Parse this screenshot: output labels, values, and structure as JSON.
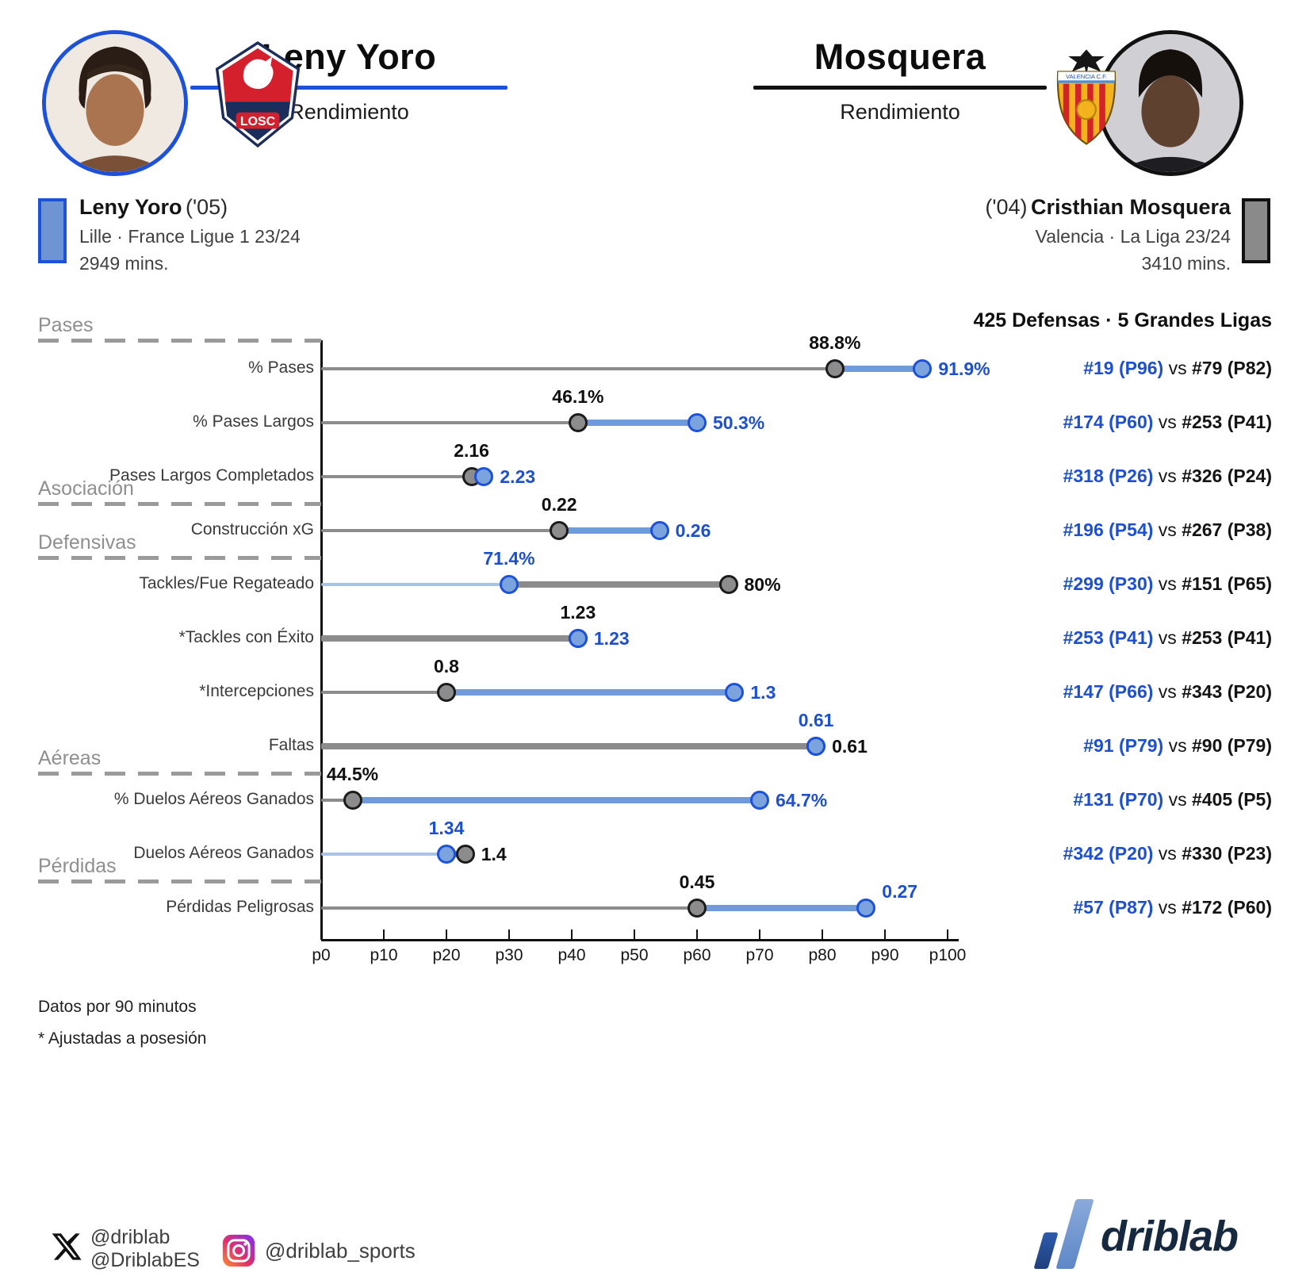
{
  "header": {
    "left": {
      "title": "Leny Yoro",
      "subtitle": "Rendimiento",
      "accent": "#1d52d8"
    },
    "right": {
      "title": "Mosquera",
      "subtitle": "Rendimiento",
      "accent": "#111111"
    }
  },
  "legend": {
    "left": {
      "name": "Leny Yoro",
      "birth": "('05)",
      "club": "Lille · France Ligue 1 23/24",
      "minutes": "2949 mins."
    },
    "right": {
      "name": "Cristhian Mosquera",
      "birth": "('04)",
      "club": "Valencia · La Liga 23/24",
      "minutes": "3410 mins."
    }
  },
  "ranking": {
    "header": "425 Defensas · 5 Grandes Ligas",
    "separator": " vs "
  },
  "chart_data": {
    "type": "dumbbell",
    "x_axis": {
      "min": 0,
      "max": 100,
      "ticks": [
        "p0",
        "p10",
        "p20",
        "p30",
        "p40",
        "p50",
        "p60",
        "p70",
        "p80",
        "p90",
        "p100"
      ]
    },
    "players": [
      {
        "id": "yoro",
        "name": "Leny Yoro"
      },
      {
        "id": "mosquera",
        "name": "Cristhian Mosquera"
      }
    ],
    "colors": {
      "yoro_dot_fill": "#7ba4df",
      "yoro_dot_stroke": "#1d52d8",
      "yoro_line_thin": "#a8c2e8",
      "yoro_line_thick": "#6f9bdb",
      "yoro_label": "#1d4fd1",
      "mosquera_dot_fill": "#8c8c8c",
      "mosquera_dot_stroke": "#1b1b1b",
      "mosquera_line_thin": "#8c8c8c",
      "mosquera_line_thick": "#8c8c8c",
      "mosquera_label": "#101010"
    },
    "sections": [
      {
        "label": "Pases",
        "before_row": 0
      },
      {
        "label": "Asociación",
        "before_row": 3
      },
      {
        "label": "Defensivas",
        "before_row": 4
      },
      {
        "label": "Aéreas",
        "before_row": 8
      },
      {
        "label": "Pérdidas",
        "before_row": 10
      }
    ],
    "rows": [
      {
        "label": "% Pases",
        "above_label": "mosquera",
        "yoro": {
          "value": "91.9%",
          "pct": 96,
          "rank": "#19 (P96)"
        },
        "mosquera": {
          "value": "88.8%",
          "pct": 82,
          "rank": "#79 (P82)"
        }
      },
      {
        "label": "% Pases Largos",
        "above_label": "mosquera",
        "yoro": {
          "value": "50.3%",
          "pct": 60,
          "rank": "#174 (P60)"
        },
        "mosquera": {
          "value": "46.1%",
          "pct": 41,
          "rank": "#253 (P41)"
        }
      },
      {
        "label": "Pases Largos Completados",
        "above_label": "mosquera",
        "yoro": {
          "value": "2.23",
          "pct": 26,
          "rank": "#318 (P26)"
        },
        "mosquera": {
          "value": "2.16",
          "pct": 24,
          "rank": "#326 (P24)"
        }
      },
      {
        "label": "Construcción xG",
        "above_label": "mosquera",
        "yoro": {
          "value": "0.26",
          "pct": 54,
          "rank": "#196 (P54)"
        },
        "mosquera": {
          "value": "0.22",
          "pct": 38,
          "rank": "#267 (P38)"
        }
      },
      {
        "label": "Tackles/Fue Regateado",
        "above_label": "yoro",
        "yoro": {
          "value": "71.4%",
          "pct": 30,
          "rank": "#299 (P30)"
        },
        "mosquera": {
          "value": "80%",
          "pct": 65,
          "rank": "#151 (P65)"
        }
      },
      {
        "label": "*Tackles con Éxito",
        "above_label": "mosquera",
        "yoro": {
          "value": "1.23",
          "pct": 41,
          "rank": "#253 (P41)"
        },
        "mosquera": {
          "value": "1.23",
          "pct": 41,
          "rank": "#253 (P41)"
        }
      },
      {
        "label": "*Intercepciones",
        "above_label": "mosquera",
        "yoro": {
          "value": "1.3",
          "pct": 66,
          "rank": "#147 (P66)"
        },
        "mosquera": {
          "value": "0.8",
          "pct": 20,
          "rank": "#343 (P20)"
        }
      },
      {
        "label": "Faltas",
        "above_label": "yoro",
        "yoro": {
          "value": "0.61",
          "pct": 79,
          "rank": "#91 (P79)"
        },
        "mosquera": {
          "value": "0.61",
          "pct": 79,
          "rank": "#90 (P79)"
        }
      },
      {
        "label": "% Duelos Aéreos Ganados",
        "above_label": "mosquera",
        "yoro": {
          "value": "64.7%",
          "pct": 70,
          "rank": "#131 (P70)"
        },
        "mosquera": {
          "value": "44.5%",
          "pct": 5,
          "rank": "#405 (P5)"
        }
      },
      {
        "label": "Duelos Aéreos Ganados",
        "above_label": "yoro",
        "yoro": {
          "value": "1.34",
          "pct": 20,
          "rank": "#342 (P20)"
        },
        "mosquera": {
          "value": "1.4",
          "pct": 23,
          "rank": "#330 (P23)"
        }
      },
      {
        "label": "Pérdidas Peligrosas",
        "above_label": "mosquera",
        "raise_right_label": true,
        "yoro": {
          "value": "0.27",
          "pct": 87,
          "rank": "#57 (P87)"
        },
        "mosquera": {
          "value": "0.45",
          "pct": 60,
          "rank": "#172 (P60)"
        }
      }
    ]
  },
  "footnotes": {
    "per90": "Datos por 90 minutos",
    "possession": "* Ajustadas a posesión"
  },
  "social": {
    "x_handle_1": "@driblab",
    "x_handle_2": "@DriblabES",
    "instagram_handle": "@driblab_sports",
    "brand": "driblab"
  }
}
